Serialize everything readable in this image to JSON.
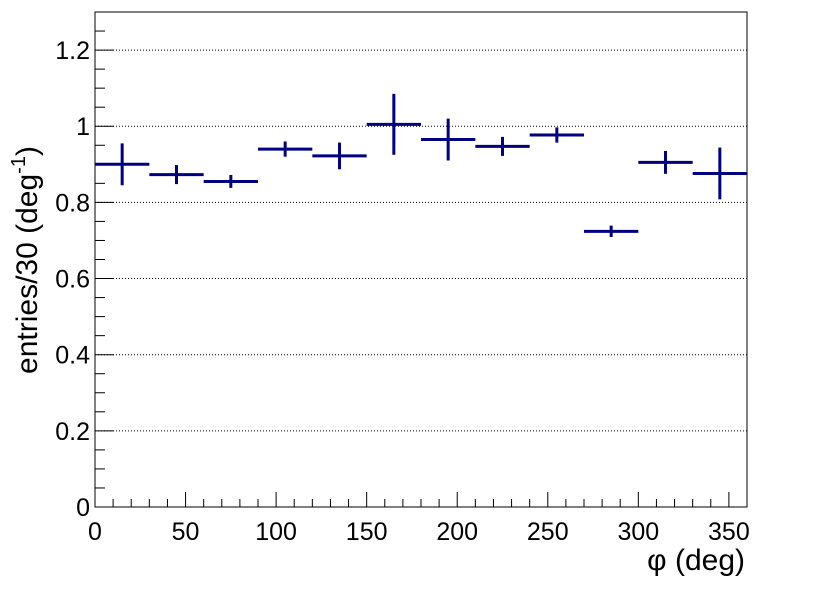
{
  "chart_data": {
    "type": "scatter",
    "title": "",
    "xlabel": "φ (deg)",
    "ylabel": "entries/30 (deg",
    "ylabel_superscript": "-1",
    "ylabel_suffix": ")",
    "xlim": [
      0,
      360
    ],
    "ylim": [
      0,
      1.3
    ],
    "x_ticks": [
      0,
      50,
      100,
      150,
      200,
      250,
      300,
      350
    ],
    "x_tick_labels": [
      "0",
      "50",
      "100",
      "150",
      "200",
      "250",
      "300",
      "350"
    ],
    "y_ticks": [
      0,
      0.2,
      0.4,
      0.6,
      0.8,
      1.0,
      1.2
    ],
    "y_tick_labels": [
      "0",
      "0.2",
      "0.4",
      "0.6",
      "0.8",
      "1",
      "1.2"
    ],
    "grid": "horizontal-dotted",
    "marker_color": "#000080",
    "series": [
      {
        "bin_width": 30,
        "x": [
          15,
          45,
          75,
          105,
          135,
          165,
          195,
          225,
          255,
          285,
          315,
          345
        ],
        "y": [
          0.9,
          0.873,
          0.855,
          0.94,
          0.922,
          1.005,
          0.965,
          0.947,
          0.977,
          0.724,
          0.905,
          0.876
        ],
        "y_err": [
          0.055,
          0.025,
          0.017,
          0.02,
          0.035,
          0.08,
          0.055,
          0.025,
          0.02,
          0.015,
          0.03,
          0.068
        ]
      }
    ]
  }
}
